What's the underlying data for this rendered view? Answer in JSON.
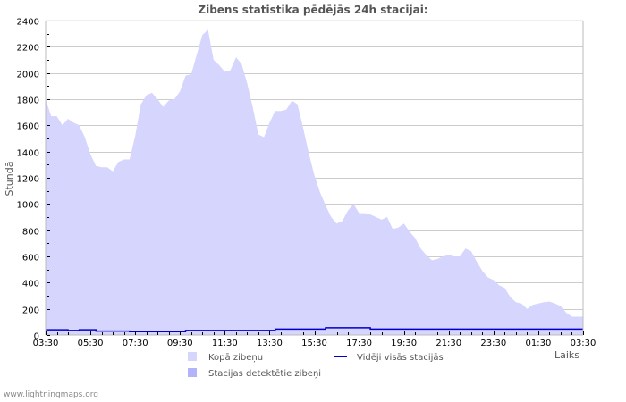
{
  "chart_data": {
    "type": "area",
    "title": "Zibens statistika pēdējās 24h stacijai:",
    "xlabel": "Laiks",
    "ylabel": "Stundā",
    "ylim": [
      0,
      2400
    ],
    "yticks": [
      0,
      200,
      400,
      600,
      800,
      1000,
      1200,
      1400,
      1600,
      1800,
      2000,
      2200,
      2400
    ],
    "xticks": [
      "03:30",
      "05:30",
      "07:30",
      "09:30",
      "11:30",
      "13:30",
      "15:30",
      "17:30",
      "19:30",
      "21:30",
      "23:30",
      "01:30",
      "03:30"
    ],
    "grid": true,
    "legend_position": "bottom",
    "x_hours_from_start": [
      0,
      0.25,
      0.5,
      0.75,
      1,
      1.25,
      1.5,
      1.75,
      2,
      2.25,
      2.5,
      2.75,
      3,
      3.25,
      3.5,
      3.75,
      4,
      4.25,
      4.5,
      4.75,
      5,
      5.25,
      5.5,
      5.75,
      6,
      6.25,
      6.5,
      6.75,
      7,
      7.25,
      7.5,
      7.75,
      8,
      8.25,
      8.5,
      8.75,
      9,
      9.25,
      9.5,
      9.75,
      10,
      10.25,
      10.5,
      10.75,
      11,
      11.25,
      11.5,
      11.75,
      12,
      12.25,
      12.5,
      12.75,
      13,
      13.25,
      13.5,
      13.75,
      14,
      14.25,
      14.5,
      14.75,
      15,
      15.25,
      15.5,
      15.75,
      16,
      16.25,
      16.5,
      16.75,
      17,
      17.25,
      17.5,
      17.75,
      18,
      18.25,
      18.5,
      18.75,
      19,
      19.25,
      19.5,
      19.75,
      20,
      20.25,
      20.5,
      20.75,
      21,
      21.25,
      21.5,
      21.75,
      22,
      22.25,
      22.5,
      22.75,
      23,
      23.25,
      23.5,
      23.75,
      24
    ],
    "series": [
      {
        "name": "Kopā zibeņu",
        "kind": "area",
        "color": "#d5d5fd",
        "values": [
          1800,
          1670,
          1670,
          1600,
          1650,
          1620,
          1600,
          1510,
          1380,
          1290,
          1280,
          1280,
          1250,
          1320,
          1340,
          1340,
          1520,
          1760,
          1830,
          1850,
          1800,
          1740,
          1790,
          1800,
          1860,
          1980,
          1990,
          2140,
          2290,
          2330,
          2100,
          2060,
          2010,
          2020,
          2120,
          2070,
          1920,
          1740,
          1530,
          1510,
          1620,
          1710,
          1710,
          1720,
          1790,
          1760,
          1580,
          1390,
          1220,
          1090,
          990,
          900,
          850,
          870,
          950,
          1000,
          930,
          930,
          920,
          900,
          880,
          900,
          810,
          820,
          850,
          790,
          740,
          660,
          610,
          570,
          580,
          600,
          610,
          600,
          600,
          660,
          640,
          560,
          490,
          440,
          420,
          380,
          360,
          290,
          250,
          240,
          200,
          230,
          240,
          250,
          255,
          240,
          220,
          170,
          140,
          140,
          140
        ]
      },
      {
        "name": "Stacijas detektētie zibeņi",
        "kind": "area",
        "color": "#b3b3fc",
        "values": []
      },
      {
        "name": "Vidēji visās stacijās",
        "kind": "line",
        "color": "#0000cc",
        "values": [
          40,
          40,
          40,
          40,
          35,
          35,
          40,
          40,
          40,
          30,
          30,
          30,
          30,
          30,
          30,
          25,
          25,
          25,
          25,
          25,
          25,
          25,
          25,
          25,
          25,
          35,
          35,
          35,
          35,
          35,
          35,
          35,
          35,
          35,
          35,
          35,
          35,
          35,
          35,
          35,
          35,
          45,
          45,
          45,
          45,
          45,
          45,
          45,
          45,
          45,
          55,
          55,
          55,
          55,
          55,
          55,
          55,
          55,
          45,
          45,
          45,
          45,
          45,
          45,
          45,
          45,
          45,
          45,
          45,
          45,
          45,
          45,
          45,
          45,
          45,
          45,
          45,
          45,
          45,
          45,
          45,
          45,
          45,
          45,
          45,
          45,
          45,
          45,
          45,
          45,
          45,
          45,
          45,
          45,
          45,
          45,
          45
        ]
      }
    ]
  },
  "labels": {
    "title": "Zibens statistika pēdējās 24h stacijai:",
    "ylabel": "Stundā",
    "xlabel": "Laiks",
    "yticks": [
      "0",
      "200",
      "400",
      "600",
      "800",
      "1000",
      "1200",
      "1400",
      "1600",
      "1800",
      "2000",
      "2200",
      "2400"
    ],
    "xticks": [
      "03:30",
      "05:30",
      "07:30",
      "09:30",
      "11:30",
      "13:30",
      "15:30",
      "17:30",
      "19:30",
      "21:30",
      "23:30",
      "01:30",
      "03:30"
    ],
    "legend": {
      "total": "Kopā zibeņu",
      "station": "Stacijas  detektētie zibeņi",
      "average": "Vidēji visās stacijās"
    },
    "footer": "www.lightningmaps.org"
  },
  "colors": {
    "total_fill": "#d5d5fd",
    "station_fill": "#b3b3fc",
    "average_line": "#0000cc",
    "grid": "#cccccc",
    "frame": "#bbbbbb"
  }
}
